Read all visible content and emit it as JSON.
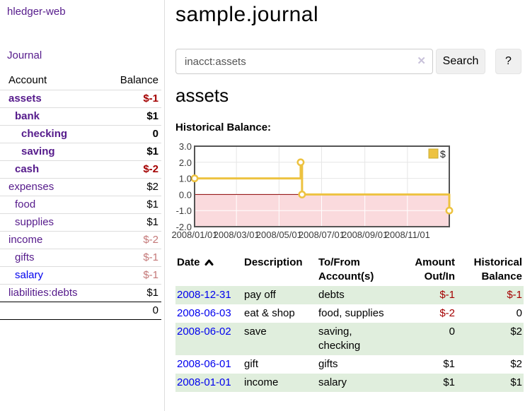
{
  "app": {
    "brand": "hledger-web"
  },
  "sidebar": {
    "nav": {
      "journal_label": "Journal"
    },
    "accounts_header": {
      "account": "Account",
      "balance": "Balance"
    },
    "accounts": [
      {
        "name": "assets",
        "balance": "$-1",
        "indent": 1,
        "bold": true,
        "negative": true
      },
      {
        "name": "bank",
        "balance": "$1",
        "indent": 2,
        "bold": true
      },
      {
        "name": "checking",
        "balance": "0",
        "indent": 3,
        "bold": true
      },
      {
        "name": "saving",
        "balance": "$1",
        "indent": 3,
        "bold": true
      },
      {
        "name": "cash",
        "balance": "$-2",
        "indent": 2,
        "bold": true,
        "negative": true
      },
      {
        "name": "expenses",
        "balance": "$2",
        "indent": 1
      },
      {
        "name": "food",
        "balance": "$1",
        "indent": 2
      },
      {
        "name": "supplies",
        "balance": "$1",
        "indent": 2
      },
      {
        "name": "income",
        "balance": "$-2",
        "indent": 1,
        "negative_dim": true
      },
      {
        "name": "gifts",
        "balance": "$-1",
        "indent": 2,
        "negative_dim": true
      },
      {
        "name": "salary",
        "balance": "$-1",
        "indent": 2,
        "negative_dim": true,
        "unvisited": true
      },
      {
        "name": "liabilities:debts",
        "balance": "$1",
        "indent": 1
      }
    ],
    "total": "0"
  },
  "header": {
    "title": "sample.journal"
  },
  "search": {
    "value": "inacct:assets",
    "clear_icon": "✕",
    "button_label": "Search",
    "help_label": "?"
  },
  "account_page": {
    "heading": "assets",
    "chart_title": "Historical Balance:"
  },
  "chart_data": {
    "type": "line",
    "title": "Historical Balance:",
    "x_range": [
      "2008-01-01",
      "2008-12-31"
    ],
    "x_ticks": [
      "2008/01/01",
      "2008/03/01",
      "2008/05/01",
      "2008/07/01",
      "2008/09/01",
      "2008/11/01"
    ],
    "ylim": [
      -2,
      3
    ],
    "y_ticks": [
      {
        "value": 3,
        "label": "3.0"
      },
      {
        "value": 2,
        "label": "2.0"
      },
      {
        "value": 1,
        "label": "1.0"
      },
      {
        "value": 0,
        "label": "0.0"
      },
      {
        "value": -1,
        "label": "-1.0"
      },
      {
        "value": -2,
        "label": "-2.0"
      }
    ],
    "series": [
      {
        "name": "$",
        "color": "#edc240",
        "step": true,
        "points": [
          {
            "x": "2008-01-01",
            "y": 1
          },
          {
            "x": "2008-06-01",
            "y": 2
          },
          {
            "x": "2008-06-03",
            "y": 0
          },
          {
            "x": "2008-12-31",
            "y": -1
          }
        ]
      }
    ],
    "legend": {
      "label": "$",
      "position": "top-right"
    },
    "colors": {
      "grid": "#e6e6e6",
      "grid_on_negative": "#ffffff",
      "border": "#545454",
      "zero_line": "#8b0000",
      "negative_region_fill": "#fadadd",
      "tick_text": "#3a3a3a",
      "marker_fill": "#ffffff"
    }
  },
  "register": {
    "columns": [
      {
        "label": "Date",
        "sorted": "asc"
      },
      {
        "label": "Description"
      },
      {
        "label": "To/From Account(s)"
      },
      {
        "label": "Amount Out/In"
      },
      {
        "label": "Historical Balance"
      }
    ],
    "rows": [
      {
        "date": "2008-12-31",
        "description": "pay off",
        "accounts": "debts",
        "amount": "$-1",
        "balance": "$-1"
      },
      {
        "date": "2008-06-03",
        "description": "eat & shop",
        "accounts": "food, supplies",
        "amount": "$-2",
        "balance": "0"
      },
      {
        "date": "2008-06-02",
        "description": "save",
        "accounts": "saving, checking",
        "amount": "0",
        "balance": "$2"
      },
      {
        "date": "2008-06-01",
        "description": "gift",
        "accounts": "gifts",
        "amount": "$1",
        "balance": "$2"
      },
      {
        "date": "2008-01-01",
        "description": "income",
        "accounts": "salary",
        "amount": "$1",
        "balance": "$1"
      }
    ]
  }
}
